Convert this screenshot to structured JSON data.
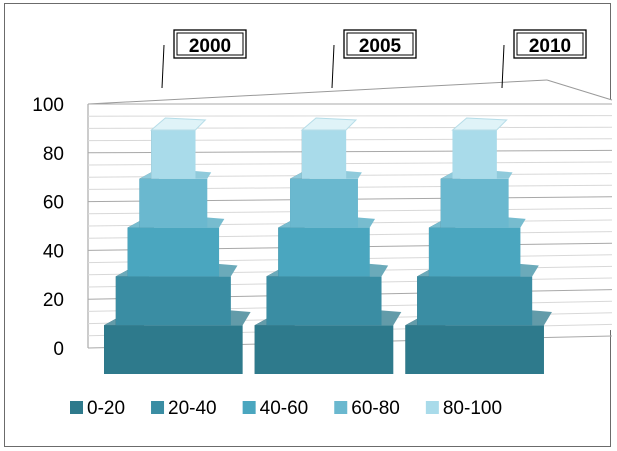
{
  "chart_data": {
    "type": "bar",
    "style": "3d-stacked-pyramid",
    "categories": [
      "2000",
      "2005",
      "2010"
    ],
    "series": [
      {
        "name": "0-20",
        "values": [
          20,
          20,
          20
        ],
        "color": "#2e7a8c"
      },
      {
        "name": "20-40",
        "values": [
          20,
          20,
          20
        ],
        "color": "#3a8da3"
      },
      {
        "name": "40-60",
        "values": [
          20,
          20,
          20
        ],
        "color": "#4aa6bf"
      },
      {
        "name": "60-80",
        "values": [
          20,
          20,
          20
        ],
        "color": "#6ab8cf"
      },
      {
        "name": "80-100",
        "values": [
          20,
          20,
          20
        ],
        "color": "#a9dbea"
      }
    ],
    "yticks": [
      0,
      20,
      40,
      60,
      80,
      100
    ],
    "ylim": [
      0,
      100
    ],
    "grid": true,
    "legend": "bottom"
  }
}
